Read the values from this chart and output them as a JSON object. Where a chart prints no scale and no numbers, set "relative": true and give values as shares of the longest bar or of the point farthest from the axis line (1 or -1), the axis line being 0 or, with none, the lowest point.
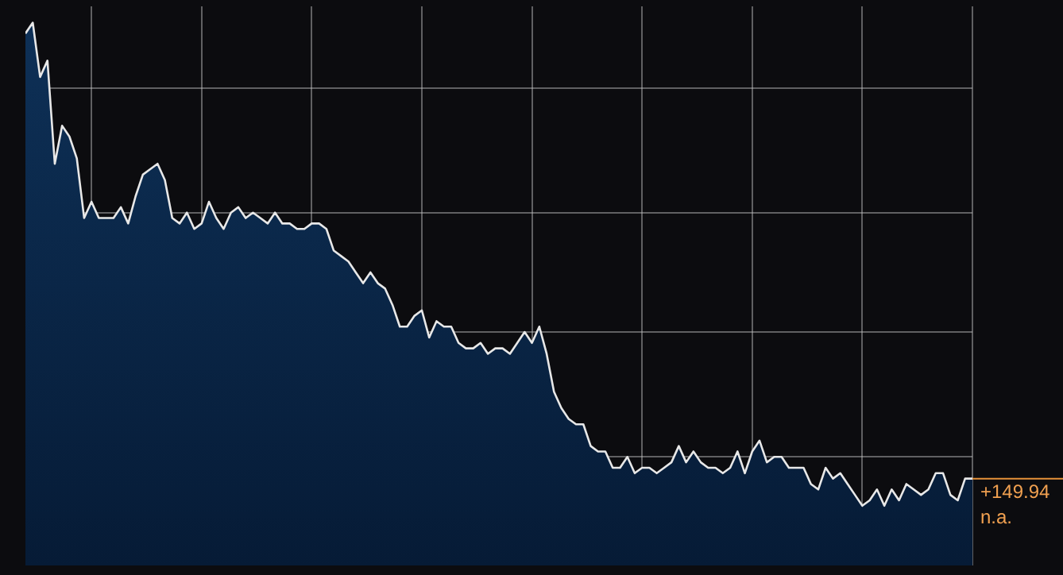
{
  "chart_data": {
    "type": "area",
    "relative": true,
    "grid": true,
    "legend": false,
    "categories": [
      null,
      null,
      null,
      null,
      null,
      null,
      null,
      null,
      null,
      null,
      null,
      null,
      null,
      null,
      null,
      null,
      null,
      null,
      null,
      null,
      null,
      null,
      null,
      null,
      null,
      null,
      null,
      null,
      null,
      null,
      null,
      null,
      null,
      null,
      null,
      null,
      null,
      null,
      null,
      null,
      null,
      null,
      null,
      null,
      null,
      null,
      null,
      null,
      null,
      null,
      null,
      null,
      null,
      null,
      null,
      null,
      null,
      null,
      null,
      null,
      null,
      null,
      null,
      null,
      null,
      null,
      null,
      null,
      null,
      null,
      null,
      null,
      null,
      null,
      null,
      null,
      null,
      null,
      null,
      null,
      null,
      null,
      null,
      null,
      null,
      null,
      null,
      null,
      null,
      null,
      null,
      null,
      null,
      null,
      null,
      null,
      null,
      null,
      null,
      null,
      null,
      null,
      null,
      null,
      null,
      null,
      null,
      null,
      null,
      null,
      null,
      null,
      null,
      null,
      null,
      null,
      null,
      null,
      null,
      null,
      null,
      null,
      null,
      null,
      null,
      null,
      null,
      null,
      null,
      null
    ],
    "series": [
      {
        "color": "#e8e8e8",
        "values": [
          0.98,
          1.0,
          0.9,
          0.93,
          0.74,
          0.81,
          0.79,
          0.75,
          0.64,
          0.67,
          0.64,
          0.64,
          0.64,
          0.66,
          0.63,
          0.68,
          0.72,
          0.73,
          0.74,
          0.71,
          0.64,
          0.63,
          0.65,
          0.62,
          0.63,
          0.67,
          0.64,
          0.62,
          0.65,
          0.66,
          0.64,
          0.65,
          0.64,
          0.63,
          0.65,
          0.63,
          0.63,
          0.62,
          0.62,
          0.63,
          0.63,
          0.62,
          0.58,
          0.57,
          0.56,
          0.54,
          0.52,
          0.54,
          0.52,
          0.51,
          0.48,
          0.44,
          0.44,
          0.46,
          0.47,
          0.42,
          0.45,
          0.44,
          0.44,
          0.41,
          0.4,
          0.4,
          0.41,
          0.39,
          0.4,
          0.4,
          0.39,
          0.41,
          0.43,
          0.41,
          0.44,
          0.39,
          0.32,
          0.29,
          0.27,
          0.26,
          0.26,
          0.22,
          0.21,
          0.21,
          0.18,
          0.18,
          0.2,
          0.17,
          0.18,
          0.18,
          0.17,
          0.18,
          0.19,
          0.22,
          0.19,
          0.21,
          0.19,
          0.18,
          0.18,
          0.17,
          0.18,
          0.21,
          0.17,
          0.21,
          0.23,
          0.19,
          0.2,
          0.2,
          0.18,
          0.18,
          0.18,
          0.15,
          0.14,
          0.18,
          0.16,
          0.17,
          0.15,
          0.13,
          0.11,
          0.12,
          0.14,
          0.11,
          0.14,
          0.12,
          0.15,
          0.14,
          0.13,
          0.14,
          0.17,
          0.17,
          0.13,
          0.12,
          0.16,
          0.16
        ]
      }
    ],
    "annotations": [
      "+149.94",
      "n.a."
    ]
  }
}
